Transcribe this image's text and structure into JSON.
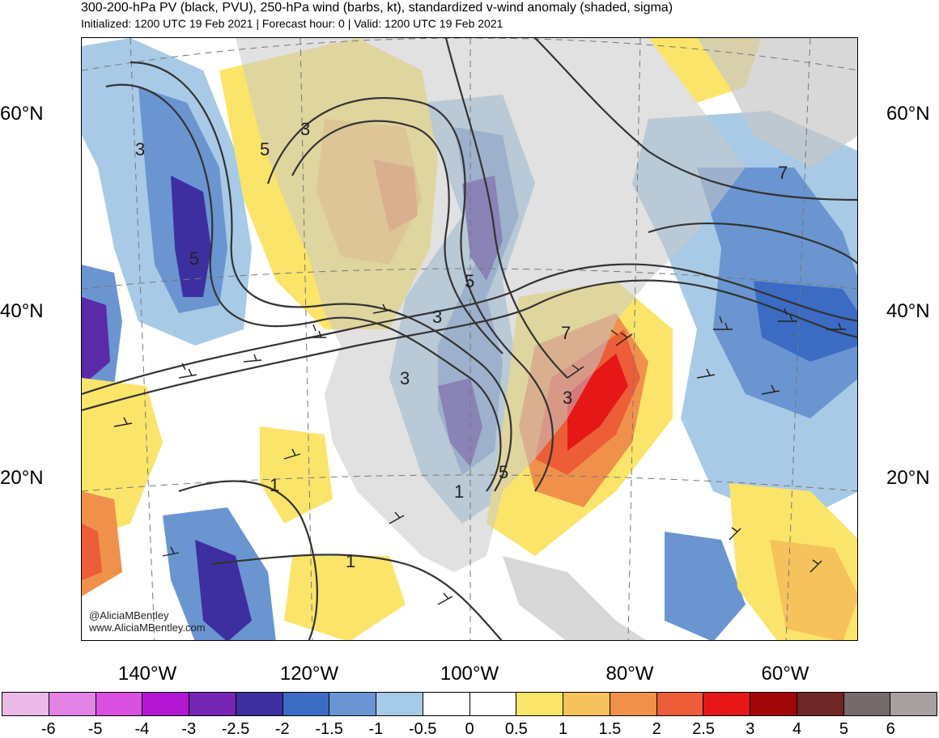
{
  "header": {
    "title": "300-200-hPa PV (black, PVU), 250-hPa wind (barbs, kt), standardized v-wind anomaly (shaded, sigma)",
    "subtitle": "Initialized: 1200 UTC 19 Feb 2021 | Forecast hour: 0 | Valid: 1200 UTC 19 Feb 2021"
  },
  "map": {
    "lat_labels": [
      "60°N",
      "40°N",
      "20°N"
    ],
    "lon_labels": [
      "140°W",
      "120°W",
      "100°W",
      "80°W",
      "60°W"
    ],
    "contour_labels": [
      "3",
      "5",
      "3",
      "5",
      "3",
      "3",
      "1",
      "5",
      "1",
      "5",
      "1",
      "7",
      "7",
      "3"
    ],
    "credit_handle": "@AliciaMBentley",
    "credit_url": "www.AliciaMBentley.com",
    "land_color": "#c8c8c8"
  },
  "colorbar": {
    "colors": [
      "#eab9e8",
      "#e383e6",
      "#d94fe0",
      "#b316d2",
      "#7626b4",
      "#3d2fa0",
      "#3c6bc4",
      "#6a95d1",
      "#a8cae6",
      "#ffffff",
      "#ffffff",
      "#fbe46a",
      "#f5c25b",
      "#f0914b",
      "#ec5d38",
      "#e51717",
      "#a10707",
      "#6e2626",
      "#766a6a",
      "#a8a0a0"
    ],
    "ticks": [
      "-6",
      "-5",
      "-4",
      "-3",
      "-2.5",
      "-2",
      "-1.5",
      "-1",
      "-0.5",
      "0",
      "0.5",
      "1",
      "1.5",
      "2",
      "2.5",
      "3",
      "4",
      "5",
      "6"
    ]
  }
}
